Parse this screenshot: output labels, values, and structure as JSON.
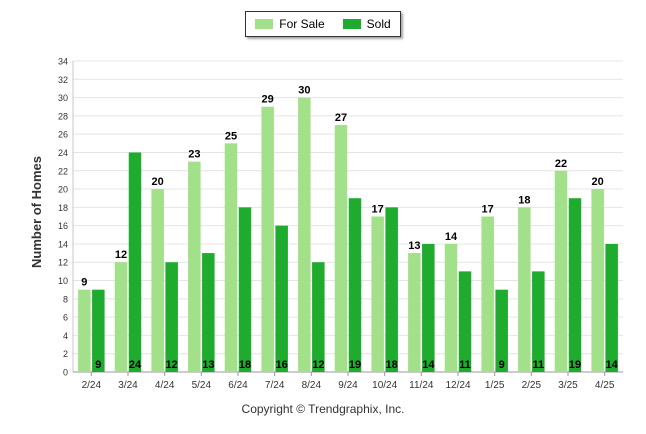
{
  "chart_data": {
    "type": "bar",
    "categories": [
      "2/24",
      "3/24",
      "4/24",
      "5/24",
      "6/24",
      "7/24",
      "8/24",
      "9/24",
      "10/24",
      "11/24",
      "12/24",
      "1/25",
      "2/25",
      "3/25",
      "4/25"
    ],
    "series": [
      {
        "name": "For Sale",
        "color": "#a3e08a",
        "values": [
          9,
          12,
          20,
          23,
          25,
          29,
          30,
          27,
          17,
          13,
          14,
          17,
          18,
          22,
          20
        ]
      },
      {
        "name": "Sold",
        "color": "#1fab2d",
        "values": [
          9,
          24,
          12,
          13,
          18,
          16,
          12,
          19,
          18,
          14,
          11,
          9,
          11,
          19,
          14
        ]
      }
    ],
    "ylabel": "Number of Homes",
    "ylim": [
      0,
      34
    ],
    "yticks": [
      0,
      2,
      4,
      6,
      8,
      10,
      12,
      14,
      16,
      18,
      20,
      22,
      24,
      26,
      28,
      30,
      32,
      34
    ],
    "grid": true,
    "legend": "top-center"
  },
  "footer": {
    "copyright": "Copyright © Trendgraphix, Inc."
  }
}
